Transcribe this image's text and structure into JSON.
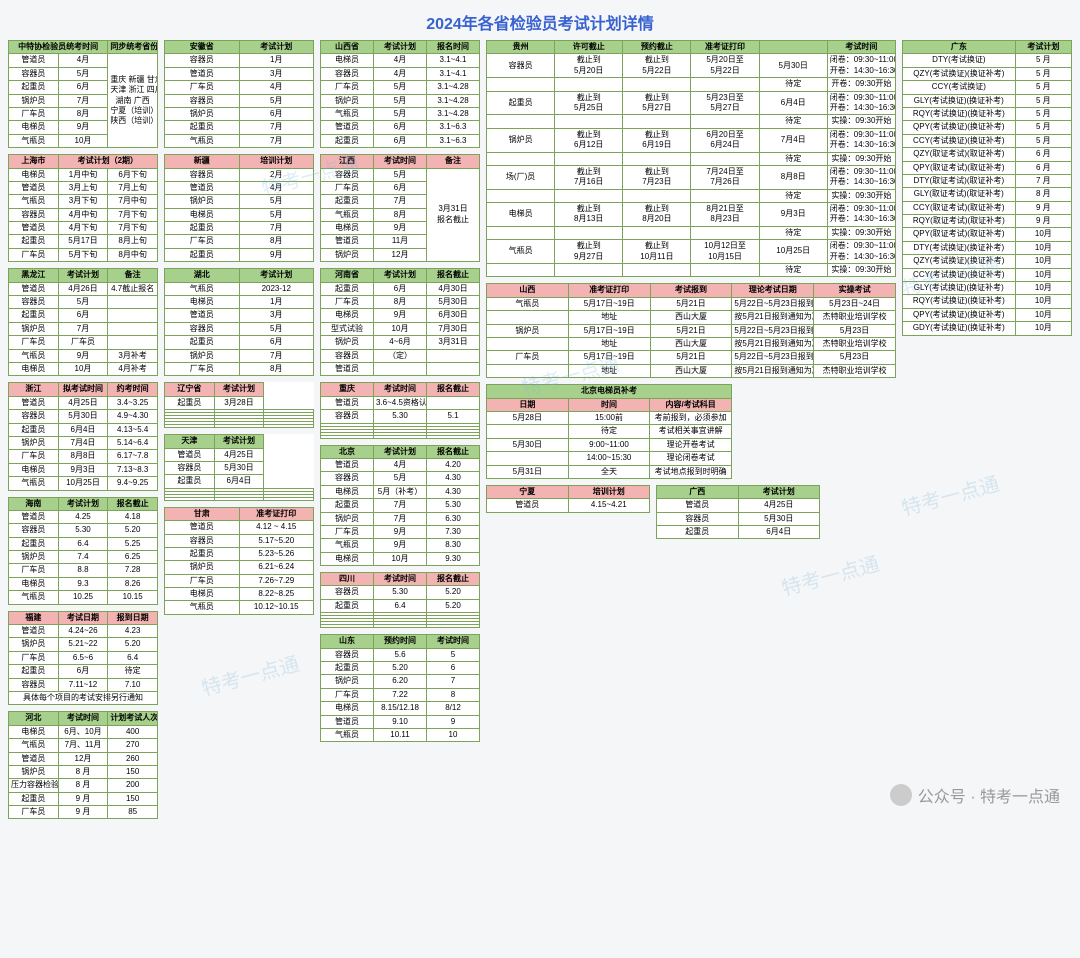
{
  "title": "2024年各省检验员考试计划详情",
  "colors": {
    "green": "#a7d08c",
    "pink": "#f3b3b3",
    "border": "#7da35a",
    "red": "#c0504d",
    "title": "#3862d0"
  },
  "watermark": "特考一点通",
  "footer": "公众号 · 特考一点通",
  "t_zhongte": {
    "head": [
      "中特协检验员统考时间",
      "同步统考省份"
    ],
    "rows": [
      [
        "管道员",
        "4月"
      ],
      [
        "容器员",
        "5月"
      ],
      [
        "起重员",
        "6月"
      ],
      [
        "锅炉员",
        "7月"
      ],
      [
        "厂车员",
        "8月"
      ],
      [
        "电梯员",
        "9月"
      ],
      [
        "气瓶员",
        "10月"
      ]
    ],
    "side": "重庆 新疆 甘肃\n天津 浙江 四川\n湖南 广西\n宁夏（培训）\n陕西（培训）"
  },
  "t_shanghai": {
    "head": [
      "上海市",
      "考试计划（2期）"
    ],
    "rows": [
      [
        "电梯员",
        "1月中旬",
        "6月下旬"
      ],
      [
        "管道员",
        "3月上旬",
        "7月上旬"
      ],
      [
        "气瓶员",
        "3月下旬",
        "7月中旬"
      ],
      [
        "容器员",
        "4月中旬",
        "7月下旬"
      ],
      [
        "管道员",
        "4月下旬",
        "7月下旬"
      ],
      [
        "起重员",
        "5月17日",
        "8月上旬"
      ],
      [
        "厂车员",
        "5月下旬",
        "8月中旬"
      ]
    ]
  },
  "t_heilongjiang": {
    "head": [
      "黑龙江",
      "考试计划",
      "备注"
    ],
    "rows": [
      [
        "管道员",
        "4月26日",
        "4.7截止报名"
      ],
      [
        "容器员",
        "5月",
        ""
      ],
      [
        "起重员",
        "6月",
        ""
      ],
      [
        "锅炉员",
        "7月",
        ""
      ],
      [
        "厂车员",
        "厂车员",
        ""
      ],
      [
        "气瓶员",
        "9月",
        "3月补考"
      ],
      [
        "电梯员",
        "10月",
        "4月补考"
      ]
    ]
  },
  "t_zhejiang": {
    "head": [
      "浙江",
      "拟考试时间",
      "约考时间"
    ],
    "rows": [
      [
        "管道员",
        "4月25日",
        "3.4~3.25"
      ],
      [
        "容器员",
        "5月30日",
        "4.9~4.30"
      ],
      [
        "起重员",
        "6月4日",
        "4.13~5.4"
      ],
      [
        "锅炉员",
        "7月4日",
        "5.14~6.4"
      ],
      [
        "厂车员",
        "8月8日",
        "6.17~7.8"
      ],
      [
        "电梯员",
        "9月3日",
        "7.13~8.3"
      ],
      [
        "气瓶员",
        "10月25日",
        "9.4~9.25"
      ]
    ]
  },
  "t_hainan": {
    "head": [
      "海南",
      "考试计划",
      "报名截止"
    ],
    "rows": [
      [
        "管道员",
        "4.25",
        "4.18"
      ],
      [
        "容器员",
        "5.30",
        "5.20"
      ],
      [
        "起重员",
        "6.4",
        "5.25"
      ],
      [
        "锅炉员",
        "7.4",
        "6.25"
      ],
      [
        "厂车员",
        "8.8",
        "7.28"
      ],
      [
        "电梯员",
        "9.3",
        "8.26"
      ],
      [
        "气瓶员",
        "10.25",
        "10.15"
      ]
    ]
  },
  "t_fujian": {
    "head": [
      "福建",
      "考试日期",
      "报到日期"
    ],
    "rows": [
      [
        "管道员",
        "4.24~26",
        "4.23"
      ],
      [
        "锅炉员",
        "5.21~22",
        "5.20"
      ],
      [
        "厂车员",
        "6.5~6",
        "6.4"
      ],
      [
        "起重员",
        "6月",
        "待定"
      ],
      [
        "容器员",
        "7.11~12",
        "7.10"
      ]
    ],
    "note": "具体每个项目的考试安排另行通知"
  },
  "t_hebei": {
    "head": [
      "河北",
      "考试时间",
      "计划考试人次"
    ],
    "rows": [
      [
        "电梯员",
        "6月、10月",
        "400"
      ],
      [
        "气瓶员",
        "7月、11月",
        "270"
      ],
      [
        "管道员",
        "12月",
        "260"
      ],
      [
        "锅炉员",
        "8 月",
        "150"
      ],
      [
        "压力容器检验",
        "8 月",
        "200"
      ],
      [
        "起重员",
        "9 月",
        "150"
      ],
      [
        "厂车员",
        "9 月",
        "85"
      ]
    ]
  },
  "t_anhui": {
    "head": [
      "安徽省",
      "考试计划"
    ],
    "rows": [
      [
        "容器员",
        "1月"
      ],
      [
        "管道员",
        "3月"
      ],
      [
        "厂车员",
        "4月"
      ],
      [
        "容器员",
        "5月"
      ],
      [
        "锅炉员",
        "6月"
      ],
      [
        "起重员",
        "7月"
      ],
      [
        "气瓶员",
        "7月"
      ]
    ]
  },
  "t_xinjiang": {
    "head": [
      "新疆",
      "培训计划"
    ],
    "rows": [
      [
        "容器员",
        "2月"
      ],
      [
        "管道员",
        "4月"
      ],
      [
        "锅炉员",
        "5月"
      ],
      [
        "电梯员",
        "5月"
      ],
      [
        "起重员",
        "7月"
      ],
      [
        "厂车员",
        "8月"
      ],
      [
        "起重员",
        "9月"
      ]
    ]
  },
  "t_hubei": {
    "head": [
      "湖北",
      "考试计划"
    ],
    "rows": [
      [
        "气瓶员",
        "2023-12"
      ],
      [
        "电梯员",
        "1月"
      ],
      [
        "管道员",
        "3月"
      ],
      [
        "容器员",
        "5月"
      ],
      [
        "起重员",
        "6月"
      ],
      [
        "锅炉员",
        "7月"
      ],
      [
        "厂车员",
        "8月"
      ]
    ]
  },
  "t_liaoning": {
    "head": [
      "辽宁省",
      "考试计划"
    ],
    "rows": [
      [
        "起重员",
        "3月28日"
      ],
      [
        "",
        "",
        ""
      ],
      [
        "",
        "",
        ""
      ],
      [
        "",
        "",
        ""
      ],
      [
        "",
        "",
        ""
      ],
      [
        "",
        "",
        ""
      ],
      [
        "",
        "",
        ""
      ]
    ]
  },
  "t_tianjin": {
    "head": [
      "天津",
      "考试计划"
    ],
    "rows": [
      [
        "管道员",
        "4月25日"
      ],
      [
        "容器员",
        "5月30日"
      ],
      [
        "起重员",
        "6月4日"
      ],
      [
        "",
        "",
        ""
      ],
      [
        "",
        "",
        ""
      ],
      [
        "",
        "",
        ""
      ],
      [
        "",
        "",
        ""
      ]
    ]
  },
  "t_gansu": {
    "head": [
      "甘肃",
      "准考证打印"
    ],
    "rows": [
      [
        "管道员",
        "4.12 ~ 4.15"
      ],
      [
        "容器员",
        "5.17~5.20"
      ],
      [
        "起重员",
        "5.23~5.26"
      ],
      [
        "锅炉员",
        "6.21~6.24"
      ],
      [
        "厂车员",
        "7.26~7.29"
      ],
      [
        "电梯员",
        "8.22~8.25"
      ],
      [
        "气瓶员",
        "10.12~10.15"
      ]
    ]
  },
  "t_shanxi1": {
    "head": [
      "山西省",
      "考试计划",
      "报名时间"
    ],
    "rows": [
      [
        "电梯员",
        "4月",
        "3.1~4.1"
      ],
      [
        "容器员",
        "4月",
        "3.1~4.1"
      ],
      [
        "厂车员",
        "5月",
        "3.1~4.28"
      ],
      [
        "锅炉员",
        "5月",
        "3.1~4.28"
      ],
      [
        "气瓶员",
        "5月",
        "3.1~4.28"
      ],
      [
        "管道员",
        "6月",
        "3.1~6.3"
      ],
      [
        "起重员",
        "6月",
        "3.1~6.3"
      ]
    ]
  },
  "t_jiangxi": {
    "head": [
      "江西",
      "考试时间",
      "备注"
    ],
    "rows": [
      [
        "容器员",
        "5月"
      ],
      [
        "厂车员",
        "6月"
      ],
      [
        "起重员",
        "7月"
      ],
      [
        "气瓶员",
        "8月"
      ],
      [
        "电梯员",
        "9月"
      ],
      [
        "管道员",
        "11月"
      ],
      [
        "锅炉员",
        "12月"
      ]
    ],
    "side": "3月31日\n报名截止"
  },
  "t_henan": {
    "head": [
      "河南省",
      "考试计划",
      "报名截止"
    ],
    "rows": [
      [
        "起重员",
        "6月",
        "4月30日"
      ],
      [
        "厂车员",
        "8月",
        "5月30日"
      ],
      [
        "电梯员",
        "9月",
        "6月30日"
      ],
      [
        "型式试验",
        "10月",
        "7月30日"
      ],
      [
        "锅炉员",
        "4~6月",
        "3月31日"
      ],
      [
        "容器员",
        "（定）",
        ""
      ],
      [
        "管道员",
        "",
        ""
      ]
    ]
  },
  "t_chongqing": {
    "head": [
      "重庆",
      "考试时间",
      "报名截止"
    ],
    "rows": [
      [
        "管道员",
        "3.6~4.5资格认定申请",
        ""
      ],
      [
        "容器员",
        "5.30",
        "5.1"
      ],
      [
        "",
        "",
        ""
      ],
      [
        "",
        "",
        ""
      ],
      [
        "",
        "",
        ""
      ],
      [
        "",
        "",
        ""
      ],
      [
        "",
        "",
        ""
      ]
    ]
  },
  "t_beijing": {
    "head": [
      "北京",
      "考试计划",
      "报名截止"
    ],
    "rows": [
      [
        "管道员",
        "4月",
        "4.20"
      ],
      [
        "容器员",
        "5月",
        "4.30"
      ],
      [
        "电梯员",
        "5月（补考）",
        "4.30"
      ],
      [
        "起重员",
        "7月",
        "5.30"
      ],
      [
        "锅炉员",
        "7月",
        "6.30"
      ],
      [
        "厂车员",
        "9月",
        "7.30"
      ],
      [
        "气瓶员",
        "9月",
        "8.30"
      ],
      [
        "电梯员",
        "10月",
        "9.30"
      ]
    ]
  },
  "t_sichuan": {
    "head": [
      "四川",
      "考试时间",
      "报名截止"
    ],
    "rows": [
      [
        "容器员",
        "5.30",
        "5.20"
      ],
      [
        "起重员",
        "6.4",
        "5.20"
      ],
      [
        "",
        "",
        ""
      ],
      [
        "",
        "",
        ""
      ],
      [
        "",
        "",
        ""
      ],
      [
        "",
        "",
        ""
      ],
      [
        "",
        "",
        ""
      ]
    ]
  },
  "t_shandong": {
    "head": [
      "山东",
      "预约时间",
      "考试时间"
    ],
    "rows": [
      [
        "容器员",
        "5.6",
        "5"
      ],
      [
        "起重员",
        "5.20",
        "6"
      ],
      [
        "锅炉员",
        "6.20",
        "7"
      ],
      [
        "厂车员",
        "7.22",
        "8"
      ],
      [
        "电梯员",
        "8.15/12.18",
        "8/12"
      ],
      [
        "管道员",
        "9.10",
        "9"
      ],
      [
        "气瓶员",
        "10.11",
        "10"
      ]
    ]
  },
  "t_guizhou": {
    "head": [
      "贵州",
      "许可截止",
      "预约截止",
      "准考证打印",
      "",
      "考试时间"
    ],
    "rows": [
      [
        "容器员",
        "截止到\n5月20日",
        "截止到\n5月22日",
        "5月20日至\n5月22日",
        "5月30日",
        "闭卷：09:30~11:00\n开卷：14:30~16:30"
      ],
      [
        "",
        "",
        "",
        "",
        "待定",
        "开卷：09:30开始"
      ],
      [
        "起重员",
        "截止到\n5月25日",
        "截止到\n5月27日",
        "5月23日至\n5月27日",
        "6月4日",
        "闭卷：09:30~11:00\n开卷：14:30~16:30"
      ],
      [
        "",
        "",
        "",
        "",
        "待定",
        "实操：09:30开始"
      ],
      [
        "锅炉员",
        "截止到\n6月12日",
        "截止到\n6月19日",
        "6月20日至\n6月24日",
        "7月4日",
        "闭卷：09:30~11:00\n开卷：14:30~16:30"
      ],
      [
        "",
        "",
        "",
        "",
        "待定",
        "实操：09:30开始"
      ],
      [
        "场(厂)员",
        "截止到\n7月16日",
        "截止到\n7月23日",
        "7月24日至\n7月26日",
        "8月8日",
        "闭卷：09:30~11:00\n开卷：14:30~16:30"
      ],
      [
        "",
        "",
        "",
        "",
        "待定",
        "实操：09:30开始"
      ],
      [
        "电梯员",
        "截止到\n8月13日",
        "截止到\n8月20日",
        "8月21日至\n8月23日",
        "9月3日",
        "闭卷：09:30~11:00\n开卷：14:30~16:30"
      ],
      [
        "",
        "",
        "",
        "",
        "待定",
        "实操：09:30开始"
      ],
      [
        "气瓶员",
        "截止到\n9月27日",
        "截止到\n10月11日",
        "10月12日至\n10月15日",
        "10月25日",
        "闭卷：09:30~11:00\n开卷：14:30~16:30"
      ],
      [
        "",
        "",
        "",
        "",
        "待定",
        "实操：09:30开始"
      ]
    ]
  },
  "t_shanxi2": {
    "head": [
      "山西",
      "准考证打印",
      "考试报到",
      "理论考试日期",
      "实操考试"
    ],
    "rows": [
      [
        "气瓶员",
        "5月17日~19日",
        "5月21日",
        "5月22日~5月23日报到通知为准",
        "5月23日~24日"
      ],
      [
        "",
        "地址",
        "西山大厦",
        "按5月21日报到通知为准",
        "杰特职业培训学校"
      ],
      [
        "锅炉员",
        "5月17日~19日",
        "5月21日",
        "5月22日~5月23日报到通知为准",
        "5月23日"
      ],
      [
        "",
        "地址",
        "西山大厦",
        "按5月21日报到通知为准",
        "杰特职业培训学校"
      ],
      [
        "厂车员",
        "5月17日~19日",
        "5月21日",
        "5月22日~5月23日报到通知为准",
        "5月23日"
      ],
      [
        "",
        "地址",
        "西山大厦",
        "按5月21日报到通知为准",
        "杰特职业培训学校"
      ]
    ]
  },
  "t_bjbk": {
    "title": "北京电梯员补考",
    "head": [
      "日期",
      "时间",
      "内容/考试科目"
    ],
    "rows": [
      [
        "5月28日",
        "15:00前",
        "考前报到，必须参加"
      ],
      [
        "",
        "待定",
        "考试相关事宜讲解"
      ],
      [
        "5月30日",
        "9:00~11:00",
        "理论开卷考试"
      ],
      [
        "",
        "14:00~15:30",
        "理论闭卷考试"
      ],
      [
        "5月31日",
        "全天",
        "考试地点报到时明确"
      ]
    ]
  },
  "t_ningxia": {
    "head": [
      "宁夏",
      "培训计划"
    ],
    "rows": [
      [
        "管道员",
        "4.15~4.21"
      ]
    ]
  },
  "t_guangxi": {
    "head": [
      "广西",
      "考试计划"
    ],
    "rows": [
      [
        "管道员",
        "4月25日"
      ],
      [
        "容器员",
        "5月30日"
      ],
      [
        "起重员",
        "6月4日"
      ]
    ]
  },
  "t_guangdong": {
    "head": [
      "广东",
      "",
      "考试计划"
    ],
    "rows": [
      [
        "DTY(考试换证)",
        "",
        "5 月"
      ],
      [
        "QZY(考试换证)(换证补考)",
        "",
        "5 月"
      ],
      [
        "CCY(考试换证)",
        "",
        "5 月"
      ],
      [
        "GLY(考试换证)(换证补考)",
        "",
        "5 月"
      ],
      [
        "RQY(考试换证)(换证补考)",
        "",
        "5 月"
      ],
      [
        "QPY(考试换证)(换证补考)",
        "",
        "5 月"
      ],
      [
        "CCY(考试换证)(换证补考)",
        "",
        "5 月"
      ],
      [
        "QZY(取证考试)(取证补考)",
        "",
        "6 月"
      ],
      [
        "QPY(取证考试)(取证补考)",
        "",
        "6 月"
      ],
      [
        "DTY(取证考试)(取证补考)",
        "",
        "7 月"
      ],
      [
        "GLY(取证考试)(取证补考)",
        "",
        "8 月"
      ],
      [
        "CCY(取证考试)(取证补考)",
        "",
        "9 月"
      ],
      [
        "RQY(取证考试)(取证补考)",
        "",
        "9 月"
      ],
      [
        "QPY(取证考试)(取证补考)",
        "",
        "10月"
      ],
      [
        "DTY(考试换证)(换证补考)",
        "",
        "10月"
      ],
      [
        "QZY(考试换证)(换证补考)",
        "",
        "10月"
      ],
      [
        "CCY(考试换证)(换证补考)",
        "",
        "10月"
      ],
      [
        "GLY(考试换证)(换证补考)",
        "",
        "10月"
      ],
      [
        "RQY(考试换证)(换证补考)",
        "",
        "10月"
      ],
      [
        "QPY(考试换证)(换证补考)",
        "",
        "10月"
      ],
      [
        "GDY(考试换证)(换证补考)",
        "",
        "10月"
      ]
    ]
  }
}
